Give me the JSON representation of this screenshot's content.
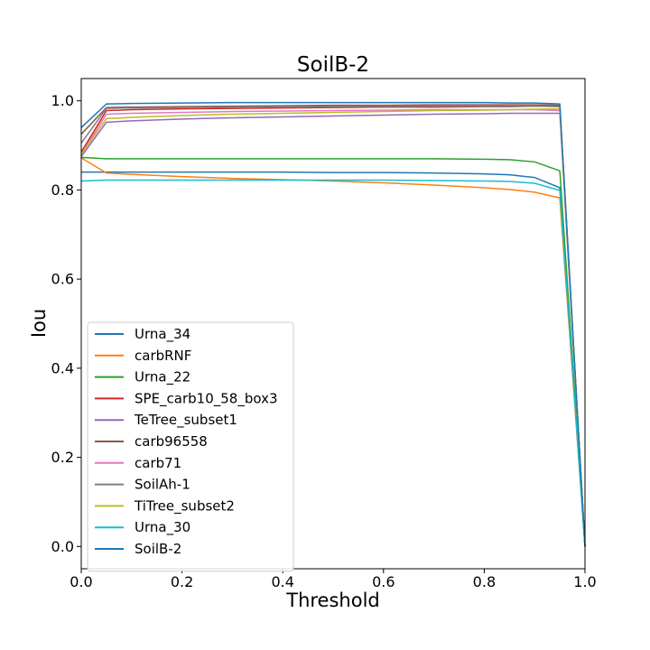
{
  "chart_data": {
    "type": "line",
    "title": "SoilB-2",
    "xlabel": "Threshold",
    "ylabel": "Iou",
    "xlim": [
      0.0,
      1.0
    ],
    "ylim": [
      -0.05,
      1.05
    ],
    "xticks": [
      "0.0",
      "0.2",
      "0.4",
      "0.6",
      "0.8",
      "1.0"
    ],
    "yticks": [
      "0.0",
      "0.2",
      "0.4",
      "0.6",
      "0.8",
      "1.0"
    ],
    "grid": false,
    "legend_position": "lower-left",
    "x": [
      0.0,
      0.05,
      0.1,
      0.2,
      0.3,
      0.4,
      0.5,
      0.6,
      0.7,
      0.8,
      0.85,
      0.9,
      0.95,
      1.0
    ],
    "series": [
      {
        "name": "Urna_34",
        "color": "#1f77b4",
        "values": [
          0.84,
          0.84,
          0.84,
          0.84,
          0.84,
          0.84,
          0.839,
          0.839,
          0.838,
          0.836,
          0.834,
          0.828,
          0.805,
          0.0
        ]
      },
      {
        "name": "carbRNF",
        "color": "#ff7f0e",
        "values": [
          0.872,
          0.838,
          0.835,
          0.83,
          0.826,
          0.823,
          0.82,
          0.816,
          0.811,
          0.805,
          0.801,
          0.795,
          0.782,
          0.0
        ]
      },
      {
        "name": "Urna_22",
        "color": "#2ca02c",
        "values": [
          0.873,
          0.87,
          0.87,
          0.87,
          0.87,
          0.87,
          0.87,
          0.87,
          0.87,
          0.869,
          0.868,
          0.863,
          0.843,
          0.0
        ]
      },
      {
        "name": "SPE_carb10_58_box3",
        "color": "#d62728",
        "values": [
          0.885,
          0.978,
          0.98,
          0.982,
          0.983,
          0.984,
          0.985,
          0.986,
          0.986,
          0.987,
          0.987,
          0.988,
          0.988,
          0.0
        ]
      },
      {
        "name": "TeTree_subset1",
        "color": "#9467bd",
        "values": [
          0.875,
          0.952,
          0.955,
          0.959,
          0.962,
          0.964,
          0.966,
          0.968,
          0.97,
          0.971,
          0.972,
          0.972,
          0.972,
          0.0
        ]
      },
      {
        "name": "carb96558",
        "color": "#8c564b",
        "values": [
          0.925,
          0.985,
          0.986,
          0.987,
          0.988,
          0.989,
          0.99,
          0.99,
          0.991,
          0.991,
          0.991,
          0.991,
          0.99,
          0.0
        ]
      },
      {
        "name": "carb71",
        "color": "#e377c2",
        "values": [
          0.88,
          0.97,
          0.972,
          0.974,
          0.976,
          0.977,
          0.978,
          0.979,
          0.98,
          0.98,
          0.98,
          0.98,
          0.978,
          0.0
        ]
      },
      {
        "name": "SoilAh-1",
        "color": "#7f7f7f",
        "values": [
          0.905,
          0.983,
          0.984,
          0.985,
          0.986,
          0.987,
          0.987,
          0.988,
          0.988,
          0.988,
          0.988,
          0.988,
          0.987,
          0.0
        ]
      },
      {
        "name": "TiTree_subset2",
        "color": "#bcbd22",
        "values": [
          0.88,
          0.96,
          0.963,
          0.967,
          0.97,
          0.972,
          0.974,
          0.976,
          0.978,
          0.979,
          0.98,
          0.981,
          0.982,
          0.0
        ]
      },
      {
        "name": "Urna_30",
        "color": "#17becf",
        "values": [
          0.82,
          0.822,
          0.822,
          0.822,
          0.822,
          0.822,
          0.822,
          0.822,
          0.821,
          0.82,
          0.819,
          0.815,
          0.799,
          0.0
        ]
      },
      {
        "name": "SoilB-2",
        "color": "#1f77b4",
        "values": [
          0.94,
          0.993,
          0.994,
          0.995,
          0.996,
          0.996,
          0.996,
          0.996,
          0.996,
          0.996,
          0.995,
          0.995,
          0.993,
          0.0
        ]
      }
    ]
  }
}
